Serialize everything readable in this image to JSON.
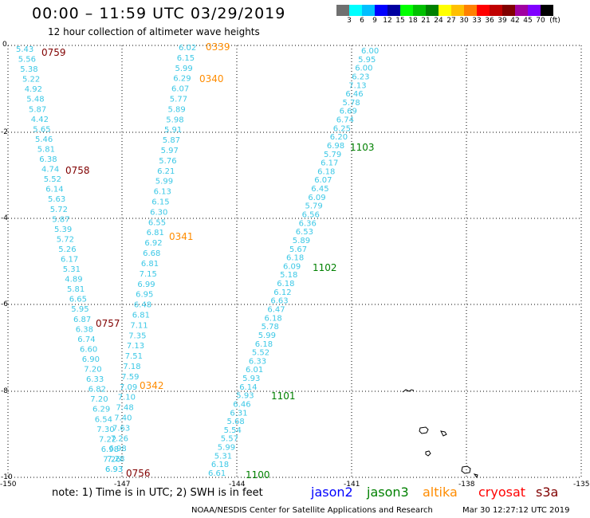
{
  "title": "00:00 – 11:59 UTC 03/29/2019",
  "subtitle": "12 hour collection of altimeter wave heights",
  "legend": {
    "unit": "(ft)",
    "colors": [
      "#707070",
      "#00ffff",
      "#00bfff",
      "#0000ff",
      "#0000a0",
      "#00ff00",
      "#00c000",
      "#008000",
      "#ffff00",
      "#ffc000",
      "#ff8000",
      "#ff0000",
      "#c00000",
      "#800000",
      "#a000a0",
      "#8000ff",
      "#000000"
    ],
    "labels": [
      "3",
      "6",
      "9",
      "12",
      "15",
      "18",
      "21",
      "24",
      "27",
      "30",
      "33",
      "36",
      "39",
      "42",
      "45",
      "70"
    ]
  },
  "axes": {
    "x_ticks": [
      "-150",
      "-147",
      "-144",
      "-141",
      "-138",
      "-135"
    ],
    "y_ticks": [
      "0",
      "-2",
      "-4",
      "-6",
      "-8",
      "-10"
    ]
  },
  "passes": [
    {
      "name": "track-a",
      "values": [
        "5.43",
        "5.56",
        "5.38",
        "5.22",
        "4.92",
        "5.48",
        "5.87",
        "4.42",
        "5.65",
        "5.46",
        "5.81",
        "6.38",
        "4.74",
        "5.52",
        "6.14",
        "5.63",
        "5.72",
        "5.87",
        "5.39",
        "5.72",
        "5.26",
        "6.17",
        "5.31",
        "4.89",
        "5.81",
        "6.65",
        "5.95",
        "6.87",
        "6.38",
        "6.74",
        "6.60",
        "6.90",
        "7.20",
        "6.33",
        "6.82",
        "7.20",
        "6.29",
        "6.54",
        "7.30",
        "7.22",
        "6.98",
        "7.26",
        "6.93"
      ],
      "times": [
        {
          "label": "0759",
          "color": "#800000"
        },
        {
          "label": "0758",
          "color": "#800000"
        },
        {
          "label": "0757",
          "color": "#800000"
        },
        {
          "label": "0756",
          "color": "#800000"
        }
      ]
    },
    {
      "name": "track-b",
      "values": [
        "6.02",
        "6.15",
        "5.99",
        "6.29",
        "6.07",
        "5.77",
        "5.89",
        "5.98",
        "5.91",
        "5.87",
        "5.97",
        "5.76",
        "6.21",
        "5.99",
        "6.13",
        "6.15",
        "6.30",
        "6.55",
        "6.81",
        "6.92",
        "6.68",
        "6.81",
        "7.15",
        "6.99",
        "6.95",
        "6.48",
        "6.81",
        "7.11",
        "7.35",
        "7.13",
        "7.51",
        "7.18",
        "7.59",
        "7.09",
        "7.10",
        "7.48",
        "7.40",
        "7.63",
        "7.26",
        "6.98",
        "7.28",
        "6.93"
      ],
      "times": [
        {
          "label": "0339",
          "color": "#ff8c00"
        },
        {
          "label": "0340",
          "color": "#ff8c00"
        },
        {
          "label": "0341",
          "color": "#ff8c00"
        },
        {
          "label": "0342",
          "color": "#ff8c00"
        }
      ]
    },
    {
      "name": "track-c",
      "values": [
        "6.00",
        "5.95",
        "6.00",
        "6.23",
        "7.13",
        "6.46",
        "5.78",
        "6.69",
        "6.74",
        "6.25",
        "6.20",
        "6.98",
        "5.79",
        "6.17",
        "6.18",
        "6.07",
        "6.45",
        "6.09",
        "5.79",
        "6.56",
        "6.36",
        "6.53",
        "5.89",
        "5.67",
        "6.18",
        "6.09",
        "5.18",
        "6.18",
        "6.12",
        "6.63",
        "6.47",
        "6.18",
        "5.78",
        "5.99",
        "6.18",
        "5.52",
        "6.33",
        "6.01",
        "5.93",
        "6.14",
        "5.93",
        "6.46",
        "6.31",
        "5.68",
        "5.54",
        "5.57",
        "5.99",
        "5.31",
        "6.18",
        "6.61"
      ],
      "times": [
        {
          "label": "1103",
          "color": "#008000"
        },
        {
          "label": "1102",
          "color": "#008000"
        },
        {
          "label": "1101",
          "color": "#008000"
        },
        {
          "label": "1100",
          "color": "#008000"
        }
      ]
    }
  ],
  "note": "note: 1) Time is in UTC; 2) SWH is in feet",
  "satellites": [
    {
      "name": "jason2",
      "color": "#0000ff"
    },
    {
      "name": "jason3",
      "color": "#008000"
    },
    {
      "name": "altika",
      "color": "#ff8c00"
    },
    {
      "name": "cryosat",
      "color": "#ff0000"
    },
    {
      "name": "s3a",
      "color": "#800000"
    }
  ],
  "credit": "NOAA/NESDIS Center for Satellite Applications and Research",
  "timestamp": "Mar 30 12:27:12 UTC 2019"
}
